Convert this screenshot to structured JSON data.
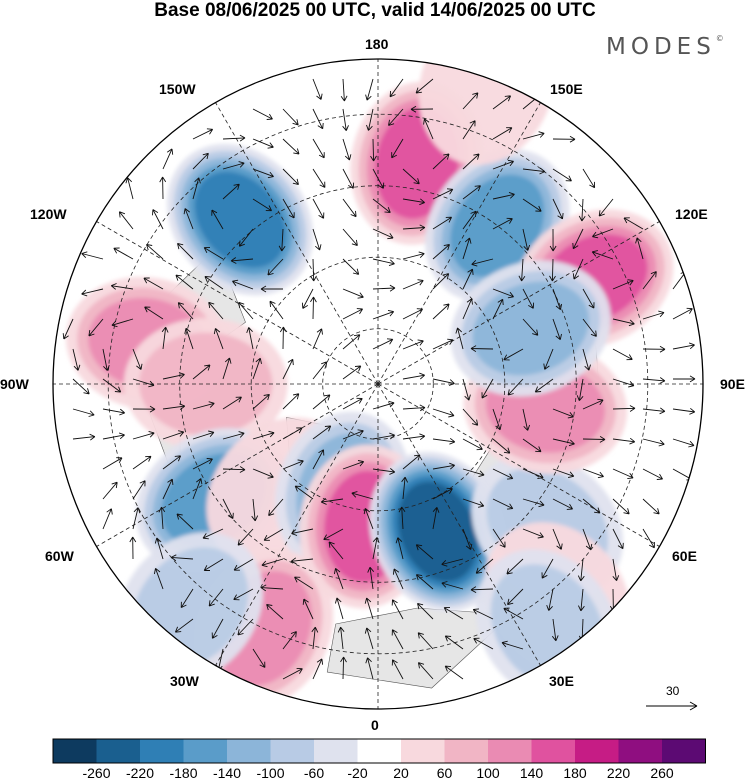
{
  "title": "Base 08/06/2025 00 UTC, valid 14/06/2025 00 UTC",
  "logo": "MODES",
  "logo_mark": "©",
  "longitude_labels": {
    "top": "180",
    "bottom": "0",
    "left": "90W",
    "right": "90E",
    "upper_left_1": "150W",
    "upper_left_2": "120W",
    "lower_left_1": "60W",
    "lower_left_2": "30W",
    "upper_right_1": "150E",
    "upper_right_2": "120E",
    "lower_right_1": "60E",
    "lower_right_2": "30E"
  },
  "vector_scale": {
    "label": "30"
  },
  "colors": {
    "negative": [
      "#0d3a5f",
      "#1a5f8f",
      "#2f7fb5",
      "#5a9cc9",
      "#8cb5d9",
      "#b8cbe5",
      "#dfe2ee"
    ],
    "neutral": "#ffffff",
    "positive": [
      "#f8d9de",
      "#f1b5c5",
      "#ea8bb3",
      "#e0529f",
      "#c61c85",
      "#8f0e80",
      "#5c0a73"
    ],
    "land": "#e6e6e6"
  },
  "colorbar": {
    "ticks": [
      "-260",
      "-220",
      "-180",
      "-140",
      "-100",
      "-60",
      "-20",
      "20",
      "60",
      "100",
      "140",
      "180",
      "220",
      "260"
    ]
  },
  "anomalies": [
    {
      "lon": 170,
      "dist": 0.69,
      "value": 170
    },
    {
      "lon": 143,
      "dist": 0.61,
      "value": -170
    },
    {
      "lon": 116,
      "dist": 0.74,
      "value": 150
    },
    {
      "lon": -140,
      "dist": 0.66,
      "value": -210
    },
    {
      "lon": -100,
      "dist": 0.72,
      "value": 120
    },
    {
      "lon": -90,
      "dist": 0.53,
      "value": 70
    },
    {
      "lon": -55,
      "dist": 0.62,
      "value": -140
    },
    {
      "lon": -42,
      "dist": 0.45,
      "value": 20
    },
    {
      "lon": -18,
      "dist": 0.35,
      "value": -110
    },
    {
      "lon": -5,
      "dist": 0.44,
      "value": 170
    },
    {
      "lon": 22,
      "dist": 0.49,
      "value": -220
    },
    {
      "lon": 50,
      "dist": 0.68,
      "value": -70
    },
    {
      "lon": 82,
      "dist": 0.52,
      "value": 110
    },
    {
      "lon": 110,
      "dist": 0.5,
      "value": -120
    },
    {
      "lon": -25,
      "dist": 0.83,
      "value": 130
    },
    {
      "lon": -40,
      "dist": 0.9,
      "value": -70
    },
    {
      "lon": 40,
      "dist": 0.86,
      "value": 30
    },
    {
      "lon": 35,
      "dist": 0.91,
      "value": -60
    },
    {
      "lon": 160,
      "dist": 0.98,
      "value": 40
    }
  ]
}
